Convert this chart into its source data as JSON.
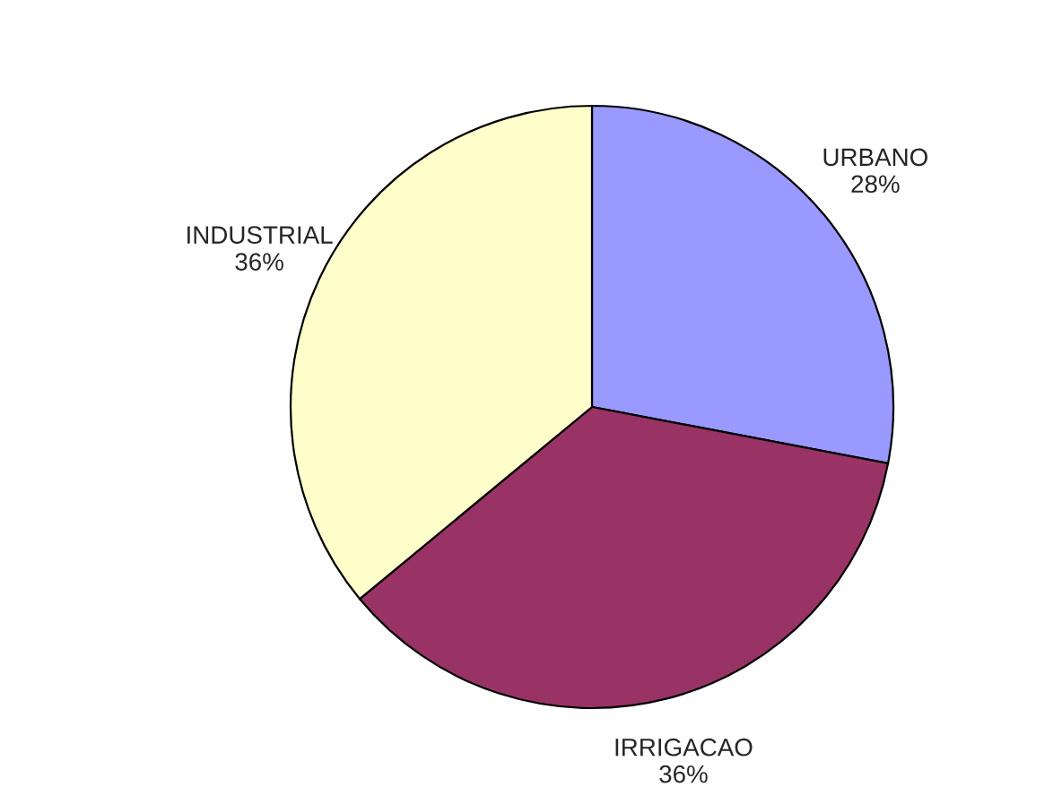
{
  "chart_data": {
    "type": "pie",
    "categories": [
      "URBANO",
      "IRRIGACAO",
      "INDUSTRIAL"
    ],
    "values": [
      28,
      36,
      36
    ],
    "value_labels": [
      "28%",
      "36%",
      "36%"
    ],
    "colors": [
      "#9999ff",
      "#993366",
      "#ffffcc"
    ],
    "legend": false
  }
}
